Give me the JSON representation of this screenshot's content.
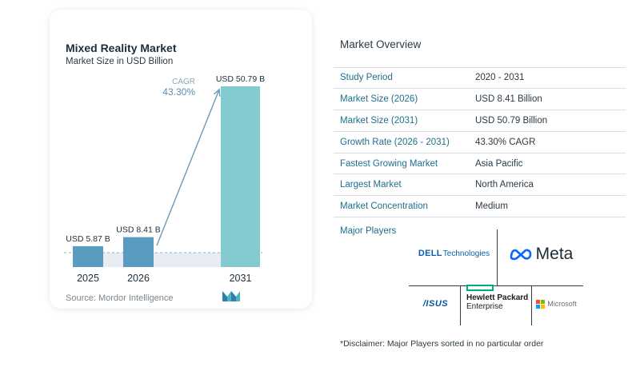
{
  "chart_data": {
    "type": "bar",
    "title": "Mixed Reality Market",
    "subtitle": "Market Size in USD Billion",
    "categories": [
      "2025",
      "2026",
      "2031"
    ],
    "values": [
      5.87,
      8.41,
      50.79
    ],
    "value_labels": [
      "USD 5.87 B",
      "USD 8.41 B",
      "USD 50.79 B"
    ],
    "cagr_label": "CAGR",
    "cagr_value": "43.30%",
    "colors": [
      "#5a9cbf",
      "#5a9cbf",
      "#84cbd0"
    ],
    "grid": false,
    "legend": "none"
  },
  "source": "Source:  Mordor Intelligence",
  "overview": {
    "title": "Market Overview",
    "rows": [
      {
        "label": "Study Period",
        "value": "2020 - 2031"
      },
      {
        "label": "Market Size (2026)",
        "value": "USD 8.41 Billion"
      },
      {
        "label": "Market Size (2031)",
        "value": "USD 50.79 Billion"
      },
      {
        "label": "Growth Rate (2026 - 2031)",
        "value": "43.30% CAGR"
      },
      {
        "label": "Fastest Growing Market",
        "value": "Asia Pacific"
      },
      {
        "label": "Largest Market",
        "value": "North America"
      },
      {
        "label": "Market Concentration",
        "value": "Medium"
      }
    ]
  },
  "players": {
    "title": "Major Players",
    "dell": {
      "brand": "DELL",
      "suffix": "Technologies"
    },
    "meta": "Meta",
    "asus": "/ISUS",
    "hpe": {
      "line1": "Hewlett Packard",
      "line2": "Enterprise"
    },
    "microsoft": "Microsoft"
  },
  "disclaimer": "*Disclaimer: Major Players sorted in no particular order",
  "brand_colors": {
    "accent": "#1e6f8c",
    "bar": "#5a9cbf",
    "bar_last": "#84cbd0",
    "hpe_green": "#01a982"
  }
}
